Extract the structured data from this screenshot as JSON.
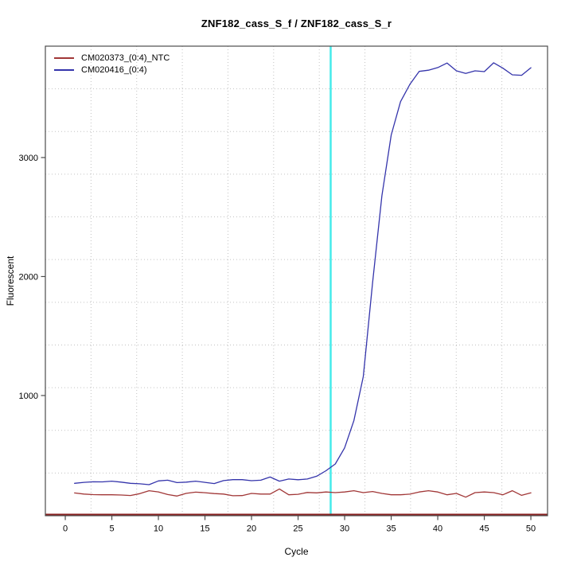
{
  "chart_data": {
    "type": "line",
    "title": "ZNF182_cass_S_f / ZNF182_cass_S_r",
    "xlabel": "Cycle",
    "ylabel": "Fluorescent",
    "xlim": [
      -2.14,
      51.79
    ],
    "ylim": [
      -10,
      3936
    ],
    "x_ticks": [
      0,
      5,
      10,
      15,
      20,
      25,
      30,
      35,
      40,
      45,
      50
    ],
    "y_ticks": [
      1000,
      2000,
      3000
    ],
    "grid": {
      "divisions_x": 11,
      "divisions_y": 11,
      "style": "dotted",
      "color": "#c2c2c2",
      "aligned_to_ticks": false
    },
    "legend_position": "top-left",
    "threshold_line": {
      "x": 28.5,
      "color": "#45ebeb",
      "width": 2.5,
      "orientation": "vertical"
    },
    "baseline_line": {
      "y": 0,
      "color": "#8b2222",
      "width": 2,
      "orientation": "horizontal"
    },
    "x": [
      1,
      2,
      3,
      4,
      5,
      6,
      7,
      8,
      9,
      10,
      11,
      12,
      13,
      14,
      15,
      16,
      17,
      18,
      19,
      20,
      21,
      22,
      23,
      24,
      25,
      26,
      27,
      28,
      29,
      30,
      31,
      32,
      33,
      34,
      35,
      36,
      37,
      38,
      39,
      40,
      41,
      42,
      43,
      44,
      45,
      46,
      47,
      48,
      49,
      50
    ],
    "series": [
      {
        "name": "CM020373_(0:4)_NTC",
        "color": "#a13737",
        "values": [
          181,
          172,
          167,
          166,
          166,
          164,
          160,
          175,
          200,
          190,
          168,
          155,
          178,
          188,
          183,
          176,
          172,
          158,
          159,
          177,
          172,
          172,
          215,
          166,
          170,
          185,
          182,
          189,
          184,
          189,
          200,
          184,
          193,
          177,
          166,
          166,
          171,
          189,
          200,
          189,
          166,
          177,
          146,
          184,
          189,
          184,
          166,
          200,
          161,
          182
        ]
      },
      {
        "name": "CM020416_(0:4)",
        "color": "#3434ab",
        "values": [
          262,
          270,
          275,
          274,
          280,
          272,
          262,
          258,
          251,
          282,
          288,
          268,
          272,
          280,
          270,
          260,
          285,
          293,
          293,
          284,
          288,
          315,
          280,
          298,
          292,
          298,
          322,
          368,
          425,
          560,
          790,
          1160,
          1950,
          2680,
          3190,
          3470,
          3615,
          3724,
          3734,
          3756,
          3794,
          3729,
          3707,
          3729,
          3722,
          3796,
          3751,
          3695,
          3691,
          3755
        ]
      }
    ]
  }
}
